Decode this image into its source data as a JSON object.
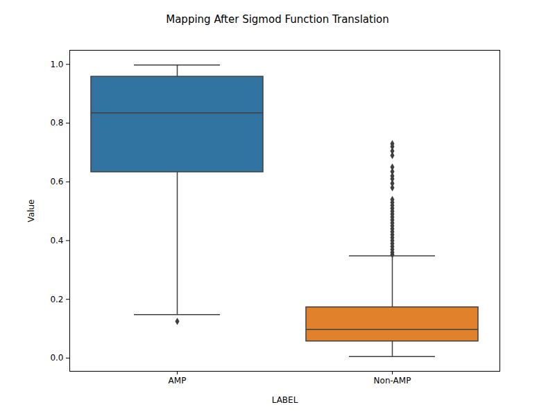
{
  "chart_data": {
    "type": "box",
    "title": "Mapping After Sigmod Function Translation",
    "x_label": "LABEL",
    "y_label": "Value",
    "categories": [
      "AMP",
      "Non-AMP"
    ],
    "colors": [
      "#3274a1",
      "#e1812c"
    ],
    "whisker_low": [
      0.148,
      0.005
    ],
    "q1": [
      0.633,
      0.057
    ],
    "median": [
      0.835,
      0.097
    ],
    "q3": [
      0.958,
      0.173
    ],
    "whisker_high": [
      0.998,
      0.348
    ],
    "outliers": [
      [
        0.125
      ],
      [
        0.352,
        0.36,
        0.37,
        0.38,
        0.39,
        0.4,
        0.41,
        0.42,
        0.43,
        0.44,
        0.45,
        0.46,
        0.47,
        0.48,
        0.49,
        0.5,
        0.51,
        0.52,
        0.53,
        0.54,
        0.58,
        0.595,
        0.61,
        0.62,
        0.635,
        0.65,
        0.69,
        0.705,
        0.72,
        0.73
      ]
    ],
    "ylim": [
      -0.045,
      1.048
    ],
    "yticks": [
      {
        "value": 0,
        "label": "0.0"
      },
      {
        "value": 0.2,
        "label": "0.2"
      },
      {
        "value": 0.4,
        "label": "0.4"
      },
      {
        "value": 0.6,
        "label": "0.6"
      },
      {
        "value": 0.8,
        "label": "0.8"
      },
      {
        "value": 1,
        "label": "1.0"
      }
    ]
  }
}
